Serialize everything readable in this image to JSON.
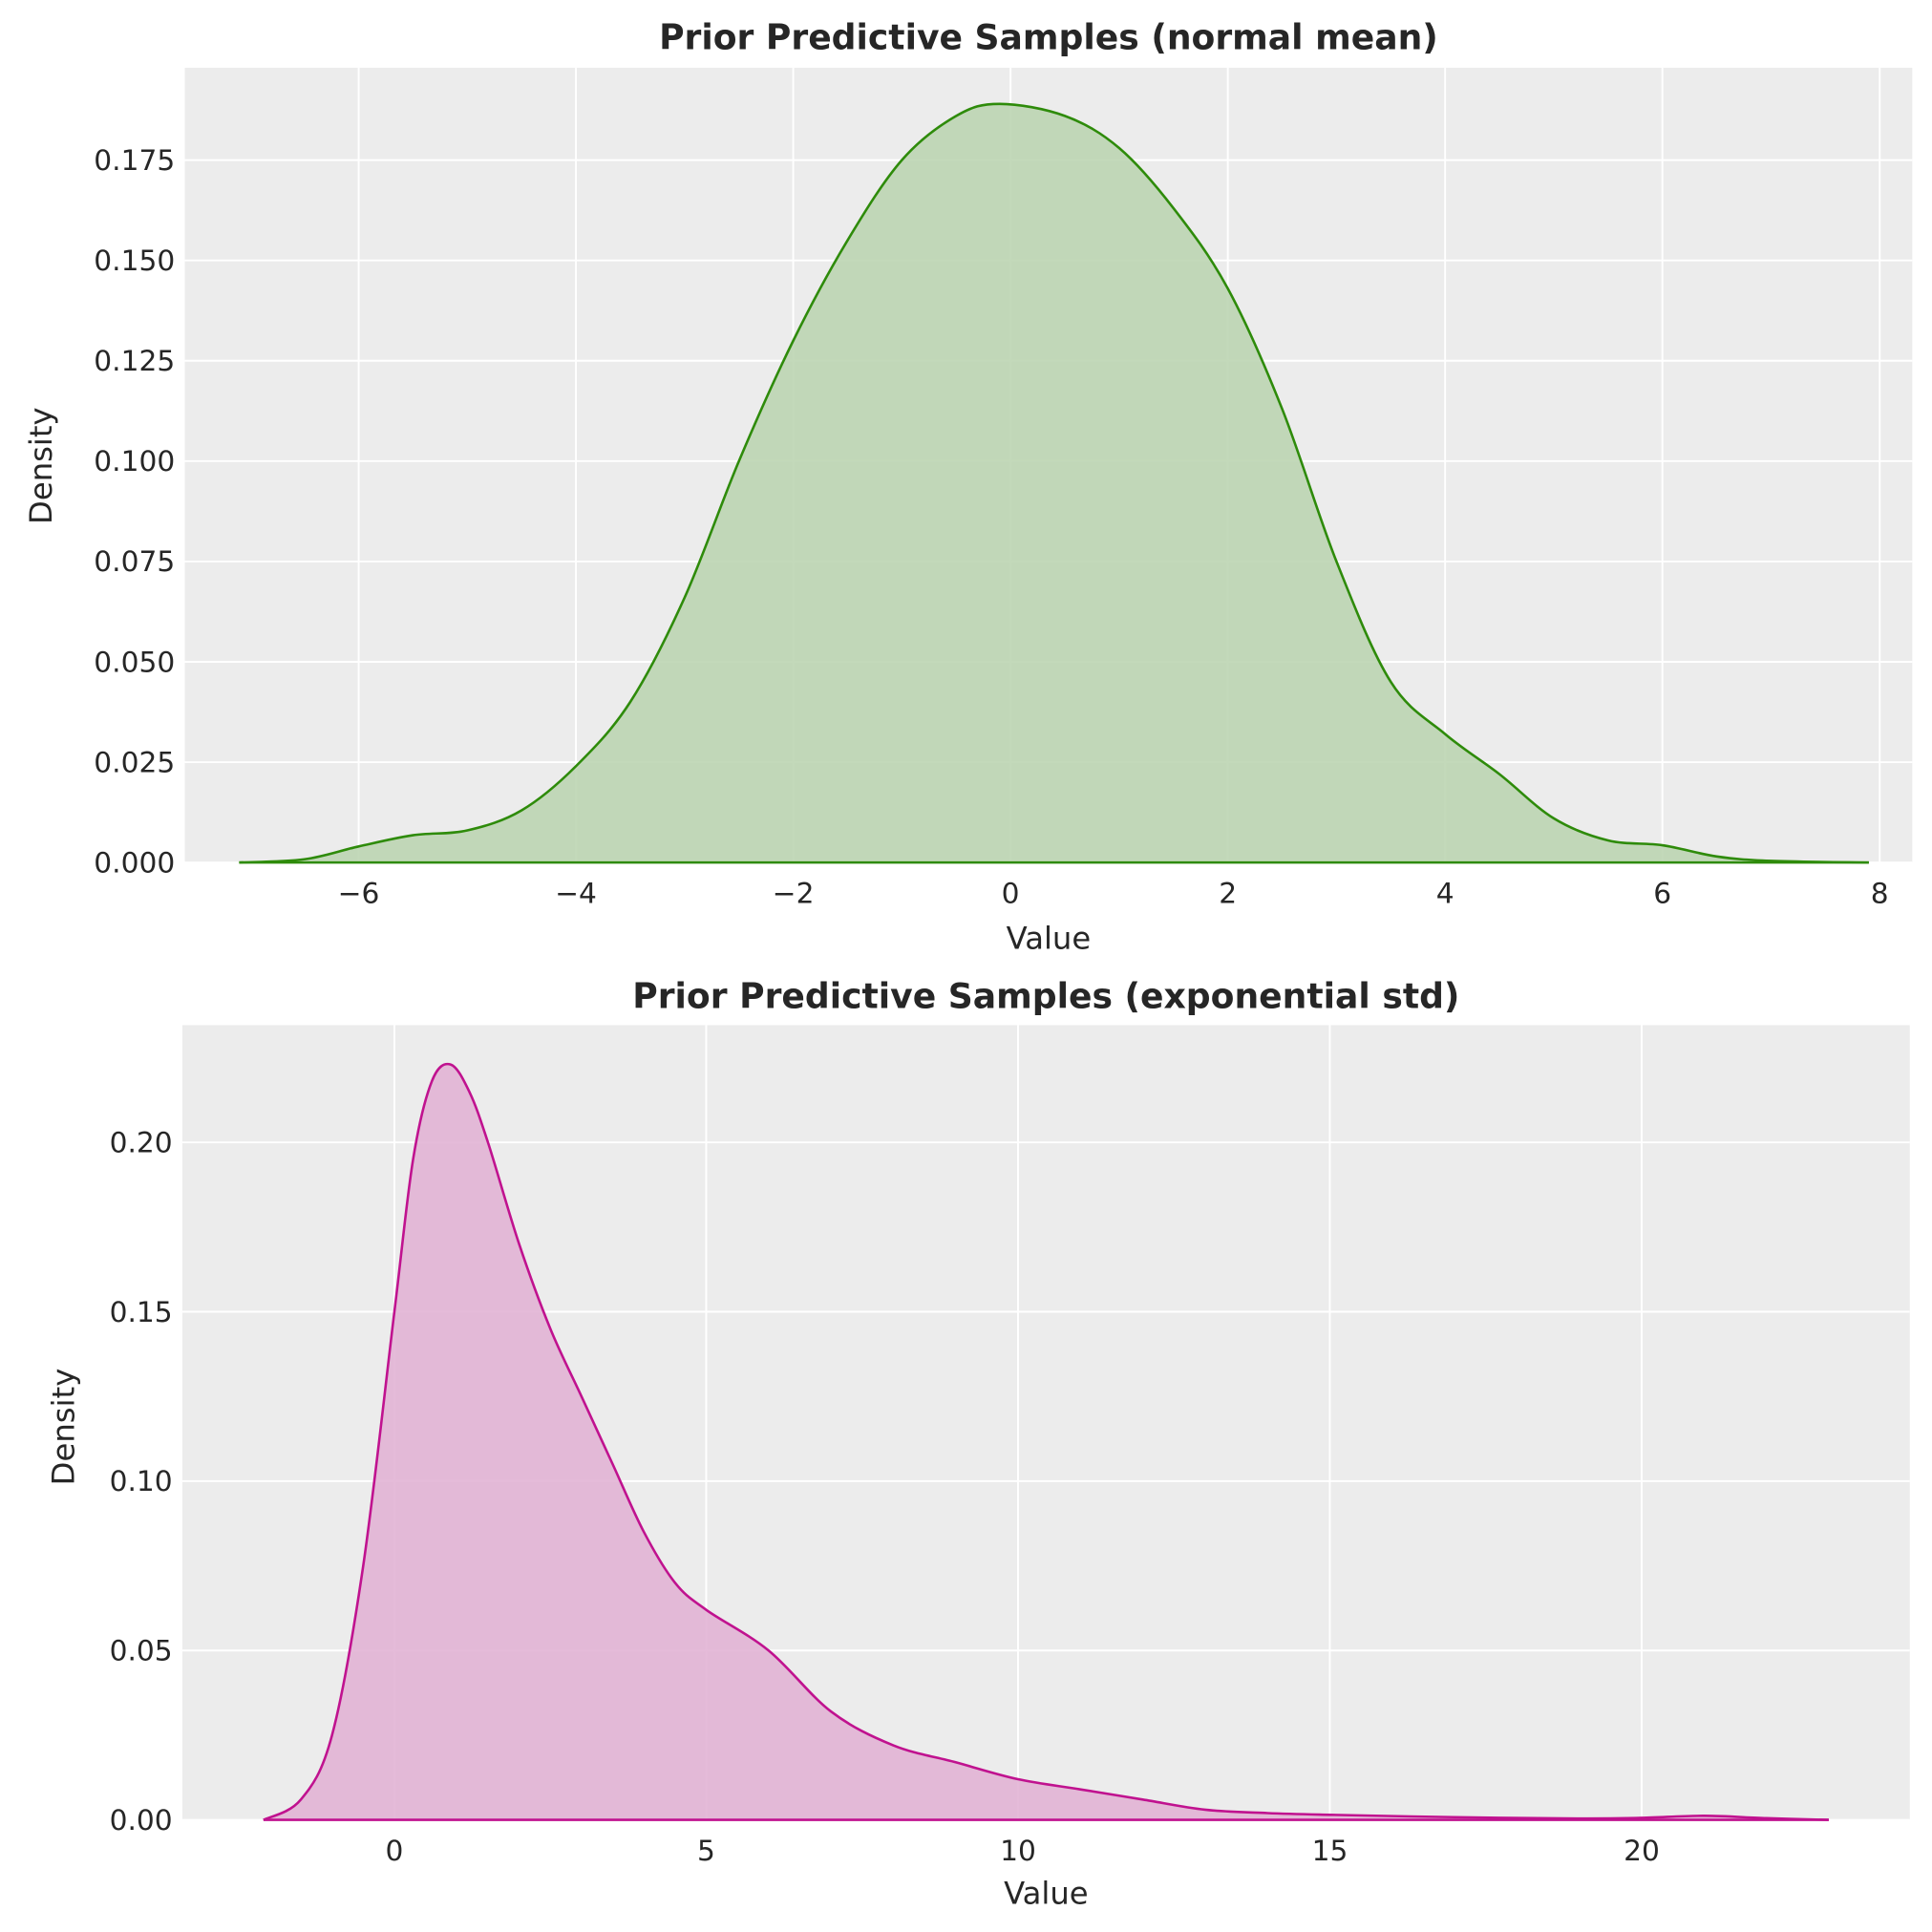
{
  "chart_data": [
    {
      "type": "area",
      "title": "Prior Predictive Samples (normal mean)",
      "xlabel": "Value",
      "ylabel": "Density",
      "xlim": [
        -7.6,
        8.3
      ],
      "ylim": [
        0,
        0.198
      ],
      "xticks": [
        -6,
        -4,
        -2,
        0,
        2,
        4,
        6,
        8
      ],
      "xtick_labels": [
        "−6",
        "−4",
        "−2",
        "0",
        "2",
        "4",
        "6",
        "8"
      ],
      "yticks": [
        0,
        0.025,
        0.05,
        0.075,
        0.1,
        0.125,
        0.15,
        0.175
      ],
      "ytick_labels": [
        "0.000",
        "0.025",
        "0.050",
        "0.075",
        "0.100",
        "0.125",
        "0.150",
        "0.175"
      ],
      "grid": true,
      "line_color": "#2e8b0a",
      "fill_color": "#bdd5b2",
      "x": [
        -7.1,
        -6.5,
        -6,
        -5.5,
        -5,
        -4.5,
        -4,
        -3.5,
        -3,
        -2.5,
        -2,
        -1.5,
        -1,
        -0.5,
        -0.1,
        0.5,
        1,
        1.5,
        2,
        2.5,
        3,
        3.5,
        4,
        4.5,
        5,
        5.5,
        6,
        6.5,
        7,
        7.9
      ],
      "y": [
        0,
        0.0008,
        0.004,
        0.0068,
        0.008,
        0.013,
        0.024,
        0.04,
        0.066,
        0.1,
        0.13,
        0.155,
        0.175,
        0.186,
        0.189,
        0.186,
        0.178,
        0.163,
        0.143,
        0.113,
        0.075,
        0.045,
        0.032,
        0.022,
        0.011,
        0.0055,
        0.0043,
        0.0015,
        0.0004,
        0
      ]
    },
    {
      "type": "area",
      "title": "Prior Predictive Samples (exponential std)",
      "xlabel": "Value",
      "ylabel": "Density",
      "xlim": [
        -3.4,
        24.3
      ],
      "ylim": [
        0,
        0.2346
      ],
      "xticks": [
        0,
        5,
        10,
        15,
        20
      ],
      "xtick_labels": [
        "0",
        "5",
        "10",
        "15",
        "20"
      ],
      "yticks": [
        0,
        0.05,
        0.1,
        0.15,
        0.2
      ],
      "ytick_labels": [
        "0.00",
        "0.05",
        "0.10",
        "0.15",
        "0.20"
      ],
      "grid": true,
      "line_color": "#c0128f",
      "fill_color": "#e2b4d5",
      "x": [
        -2.1,
        -1.5,
        -1,
        -0.5,
        0,
        0.3,
        0.6,
        0.9,
        1.2,
        1.5,
        2,
        2.5,
        3,
        3.5,
        4,
        4.5,
        5,
        6,
        7,
        8,
        9,
        10,
        11,
        12,
        13,
        14,
        15,
        17,
        19,
        20,
        21,
        22,
        23
      ],
      "y": [
        0,
        0.006,
        0.025,
        0.075,
        0.15,
        0.195,
        0.218,
        0.223,
        0.215,
        0.2,
        0.17,
        0.145,
        0.125,
        0.105,
        0.085,
        0.07,
        0.062,
        0.05,
        0.032,
        0.022,
        0.017,
        0.012,
        0.009,
        0.006,
        0.003,
        0.002,
        0.0015,
        0.0008,
        0.0004,
        0.0006,
        0.0012,
        0.0005,
        0
      ]
    }
  ]
}
